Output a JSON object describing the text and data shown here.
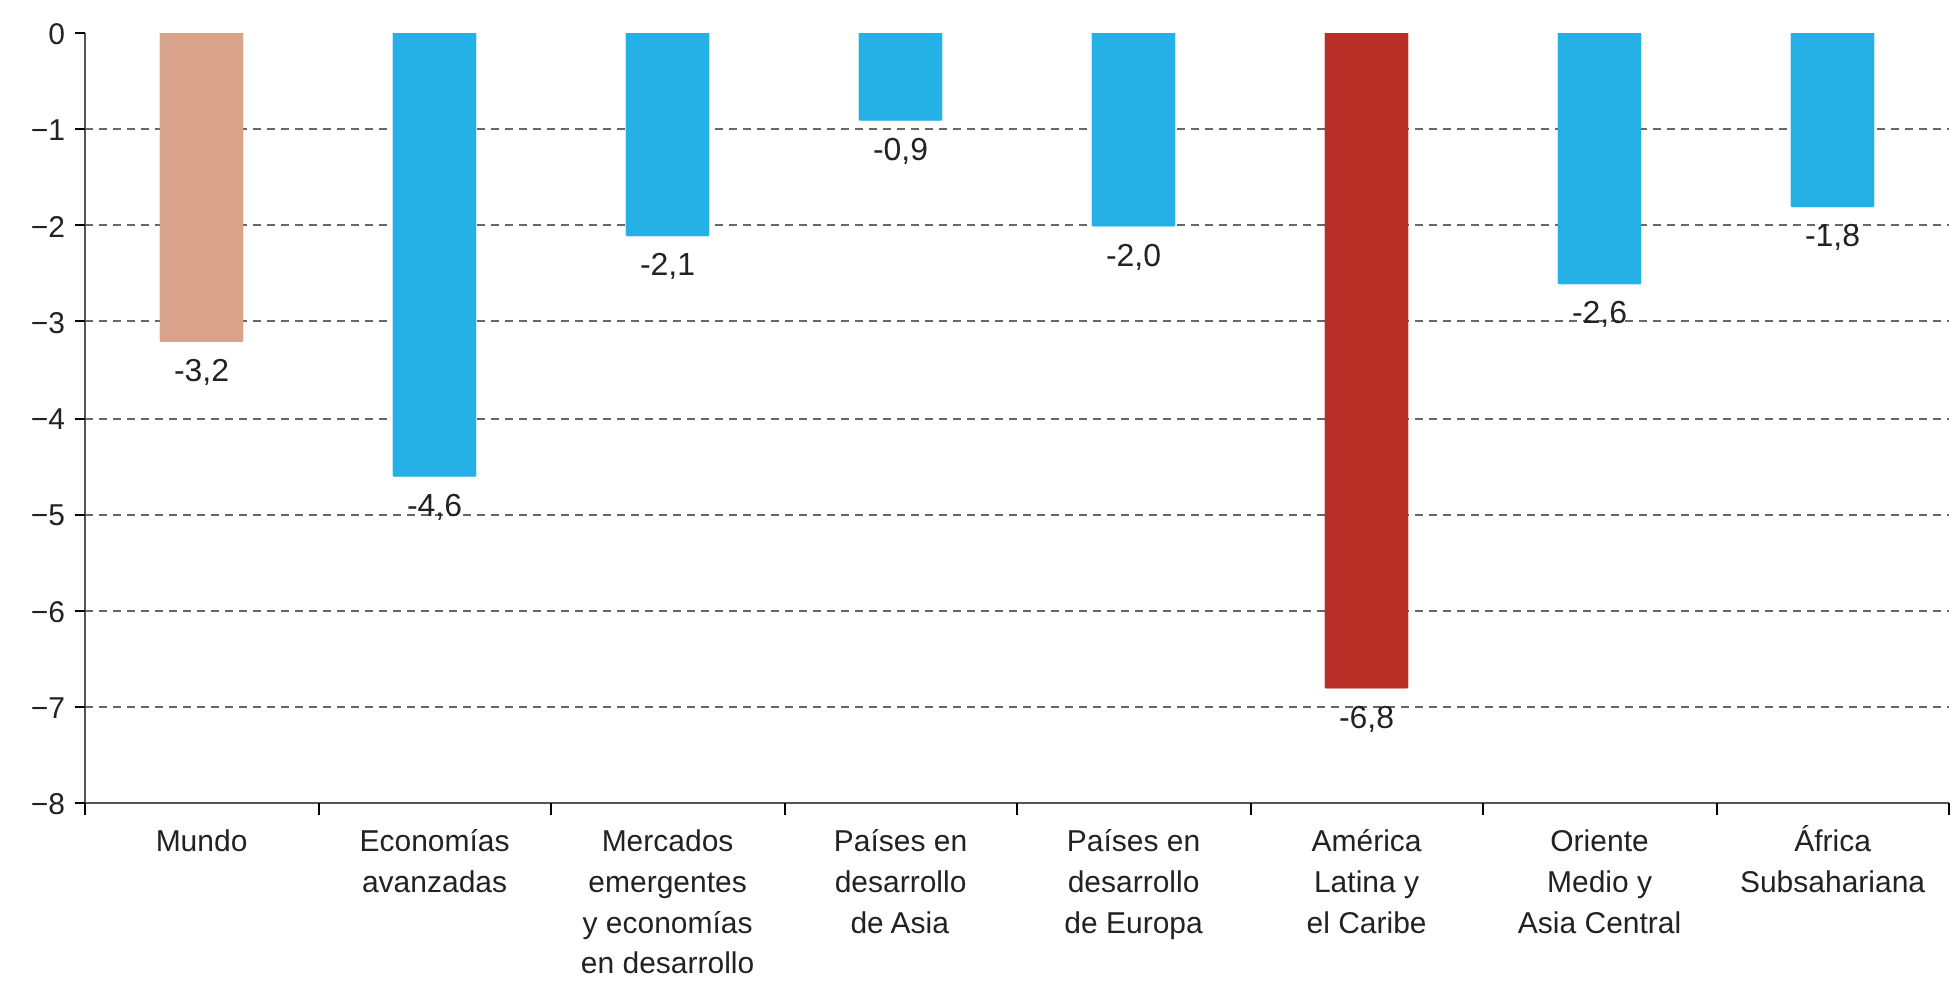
{
  "chart_data": {
    "type": "bar",
    "categories": [
      "Mundo",
      "Economías\navanzadas",
      "Mercados\nemergentes\ny economías\nen desarrollo",
      "Países en\ndesarrollo\nde Asia",
      "Países en\ndesarrollo\nde Europa",
      "América\nLatina y\nel Caribe",
      "Oriente\nMedio y\nAsia Central",
      "África\nSubsahariana"
    ],
    "values": [
      -3.2,
      -4.6,
      -2.1,
      -0.9,
      -2.0,
      -6.8,
      -2.6,
      -1.8
    ],
    "colors": [
      "#d9a38b",
      "#25b0e6",
      "#25b0e6",
      "#25b0e6",
      "#25b0e6",
      "#b72f27",
      "#25b0e6",
      "#25b0e6"
    ],
    "value_labels": [
      "-3,2",
      "-4,6",
      "-2,1",
      "-0,9",
      "-2,0",
      "-6,8",
      "-2,6",
      "-1,8"
    ],
    "ylim": [
      -8,
      0
    ],
    "yticks": [
      0,
      -1,
      -2,
      -3,
      -4,
      -5,
      -6,
      -7,
      -8
    ],
    "grid": "y"
  }
}
